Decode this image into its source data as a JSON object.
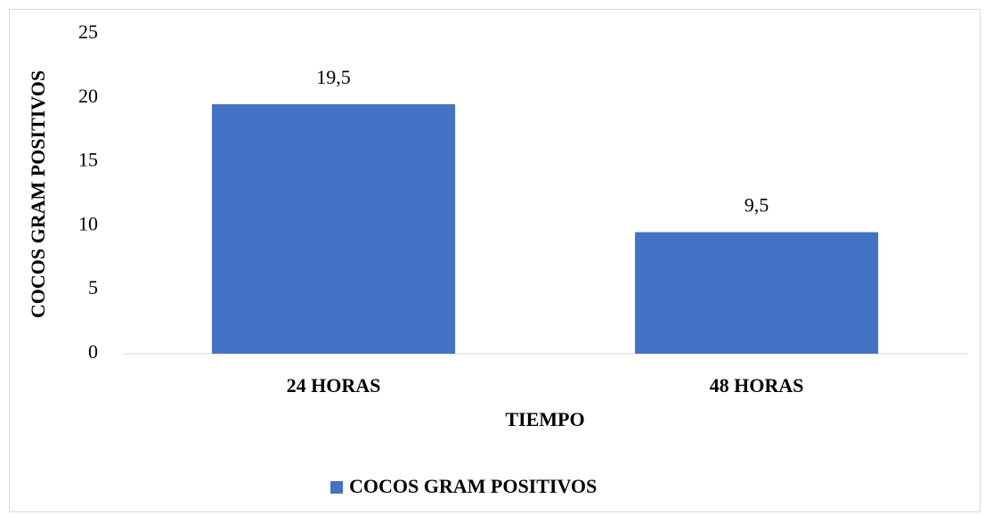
{
  "chart_data": {
    "type": "bar",
    "categories": [
      "24 HORAS",
      "48 HORAS"
    ],
    "series": [
      {
        "name": "COCOS GRAM POSITIVOS",
        "color": "#4472c4",
        "values": [
          19.5,
          9.5
        ],
        "value_labels": [
          "19,5",
          "9,5"
        ]
      }
    ],
    "x_label": "TIEMPO",
    "y_label": "COCOS GRAM POSITIVOS",
    "ylim": [
      0,
      25
    ],
    "yticks": [
      0,
      5,
      10,
      15,
      20,
      25
    ],
    "grid": false,
    "legend": "bottom"
  }
}
